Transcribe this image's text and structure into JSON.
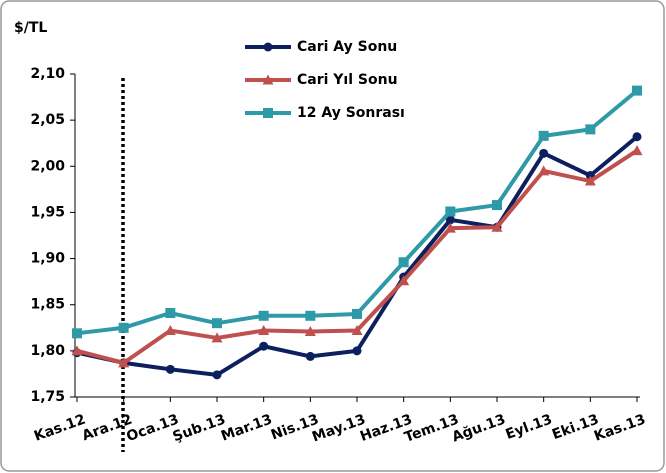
{
  "chart_data": {
    "type": "line",
    "y_label": "$/TL",
    "categories": [
      "Kas.12",
      "Ara.12",
      "Oca.13",
      "Şub.13",
      "Mar.13",
      "Nis.13",
      "May.13",
      "Haz.13",
      "Tem.13",
      "Ağu.13",
      "Eyl.13",
      "Eki.13",
      "Kas.13"
    ],
    "series": [
      {
        "name": "Cari Ay Sonu",
        "color": "#0c1f5e",
        "marker": "circle",
        "values": [
          1.798,
          1.787,
          1.78,
          1.774,
          1.805,
          1.794,
          1.8,
          1.88,
          1.942,
          1.934,
          2.014,
          1.99,
          2.032
        ]
      },
      {
        "name": "Cari Yıl Sonu",
        "color": "#c0504d",
        "marker": "triangle",
        "values": [
          1.8,
          1.787,
          1.822,
          1.814,
          1.822,
          1.821,
          1.822,
          1.876,
          1.933,
          1.934,
          1.995,
          1.984,
          2.017
        ]
      },
      {
        "name": "12 Ay Sonrası",
        "color": "#2e9aa8",
        "marker": "square",
        "values": [
          1.819,
          1.825,
          1.841,
          1.83,
          1.838,
          1.838,
          1.84,
          1.896,
          1.951,
          1.958,
          2.033,
          2.04,
          2.082
        ]
      }
    ],
    "ylim": [
      1.75,
      2.1
    ],
    "yticks": [
      {
        "value": 1.75,
        "label": "1,75"
      },
      {
        "value": 1.8,
        "label": "1,80"
      },
      {
        "value": 1.85,
        "label": "1,85"
      },
      {
        "value": 1.9,
        "label": "1,90"
      },
      {
        "value": 1.95,
        "label": "1,95"
      },
      {
        "value": 2.0,
        "label": "2,00"
      },
      {
        "value": 2.05,
        "label": "2,05"
      },
      {
        "value": 2.1,
        "label": "2,10"
      }
    ],
    "grid": false,
    "legend": "top"
  }
}
